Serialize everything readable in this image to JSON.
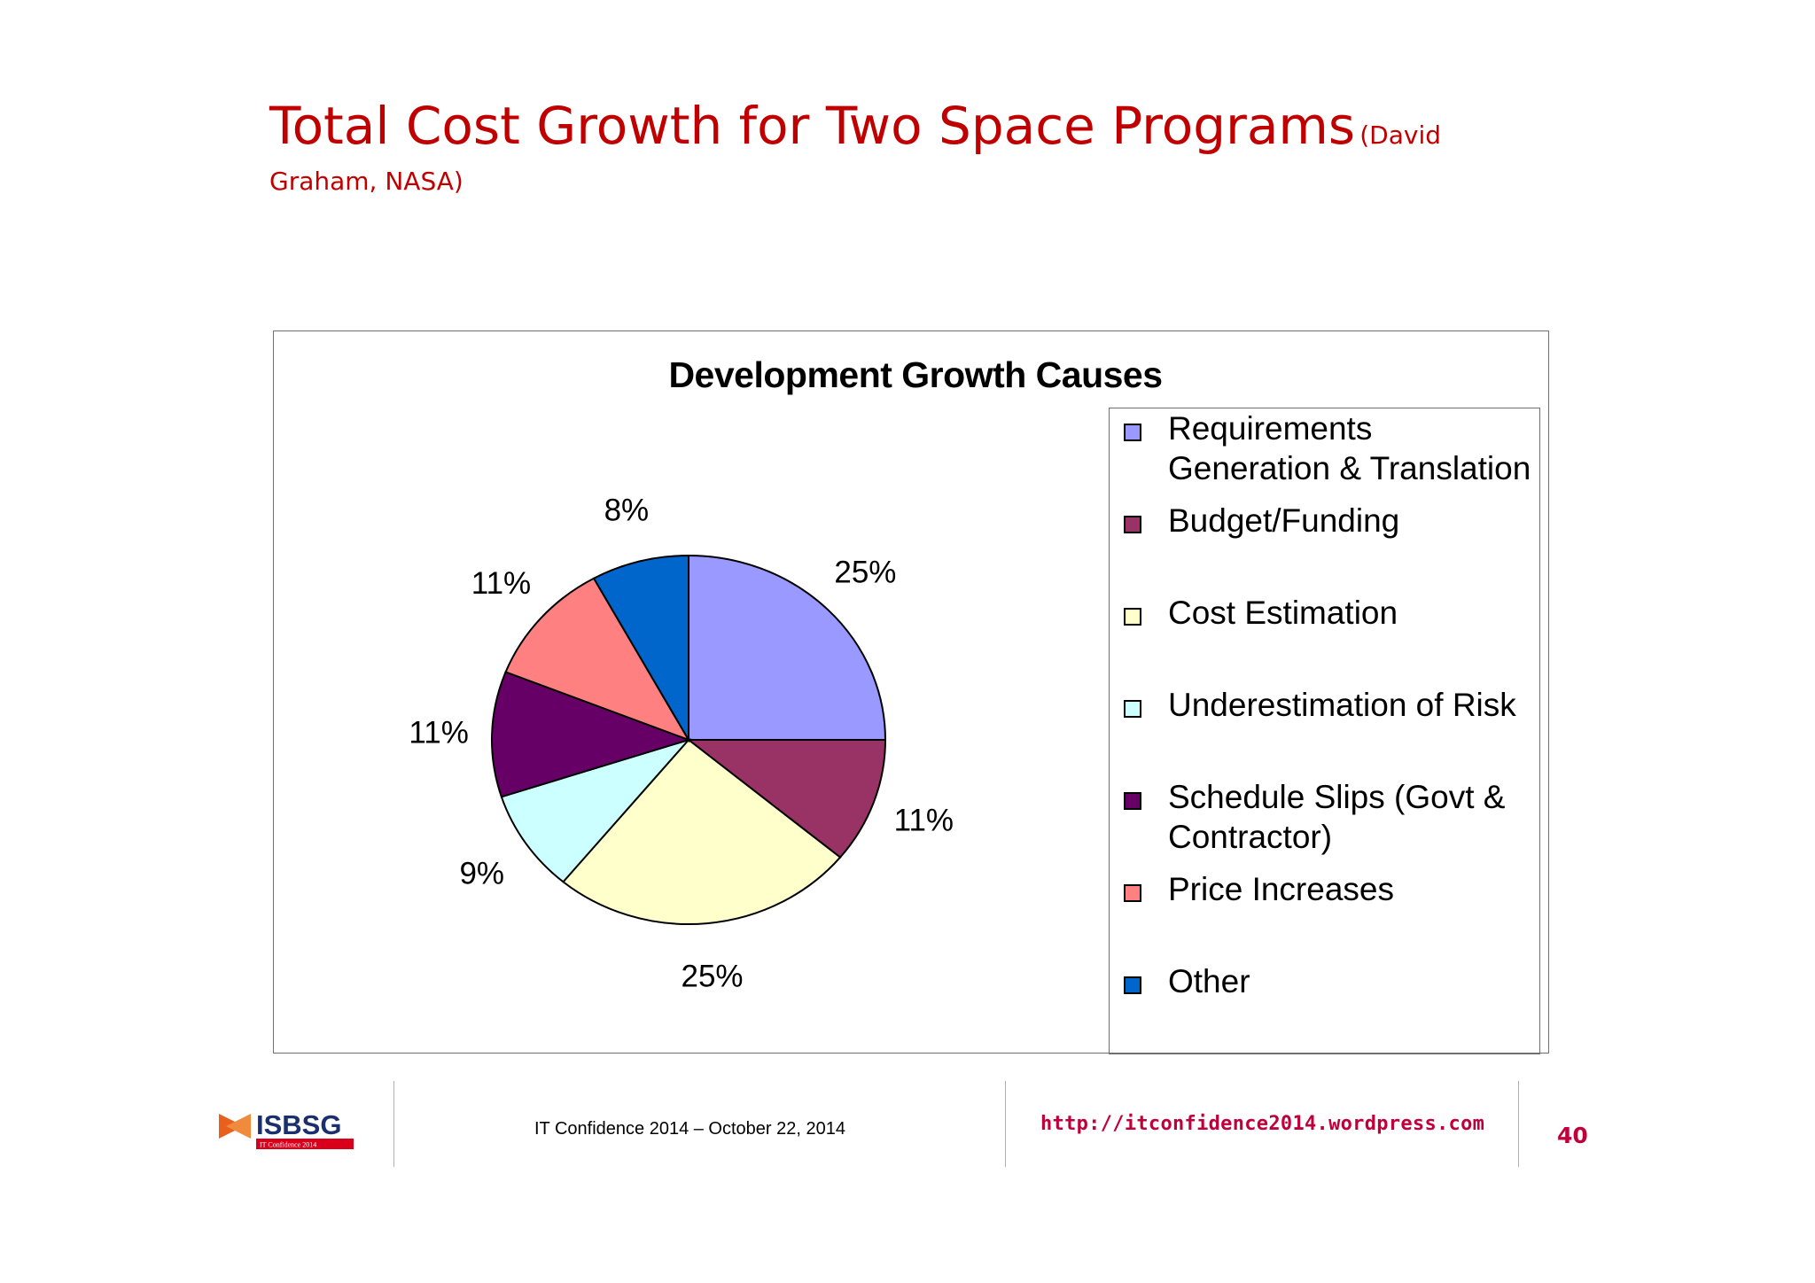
{
  "slide": {
    "title": "Total Cost Growth for Two Space Programs",
    "title_credit_line1": "(David",
    "title_credit_line2": "Graham, NASA)"
  },
  "chart_data": {
    "type": "pie",
    "title": "Development Growth Causes",
    "legend_position": "right",
    "slices": [
      {
        "name": "Requirements Generation & Translation",
        "value": 25,
        "label": "25%",
        "color": "#9999ff"
      },
      {
        "name": "Budget/Funding",
        "value": 11,
        "label": "11%",
        "color": "#993366"
      },
      {
        "name": "Cost Estimation",
        "value": 25,
        "label": "25%",
        "color": "#ffffcc"
      },
      {
        "name": "Underestimation of Risk",
        "value": 9,
        "label": "9%",
        "color": "#ccffff"
      },
      {
        "name": "Schedule Slips (Govt & Contractor)",
        "value": 11,
        "label": "11%",
        "color": "#660066"
      },
      {
        "name": "Price Increases",
        "value": 11,
        "label": "11%",
        "color": "#ff8080"
      },
      {
        "name": "Other",
        "value": 8,
        "label": "8%",
        "color": "#0066cc"
      }
    ]
  },
  "legend": {
    "items": [
      {
        "line1": "Requirements",
        "line2": "Generation & Translation",
        "color": "#9999ff"
      },
      {
        "line1": "Budget/Funding",
        "line2": "",
        "color": "#993366"
      },
      {
        "line1": "Cost Estimation",
        "line2": "",
        "color": "#ffffcc"
      },
      {
        "line1": "Underestimation of Risk",
        "line2": "",
        "color": "#ccffff"
      },
      {
        "line1": "Schedule Slips (Govt &",
        "line2": "Contractor)",
        "color": "#660066"
      },
      {
        "line1": "Price Increases",
        "line2": "",
        "color": "#ff8080"
      },
      {
        "line1": "Other",
        "line2": "",
        "color": "#0066cc"
      }
    ]
  },
  "footer": {
    "logo_text": "ISBSG",
    "logo_subtext": "IT Confidence 2014",
    "conference": "IT Confidence 2014 – October 22, 2014",
    "url": "http://itconfidence2014.wordpress.com",
    "page_number": "40"
  }
}
